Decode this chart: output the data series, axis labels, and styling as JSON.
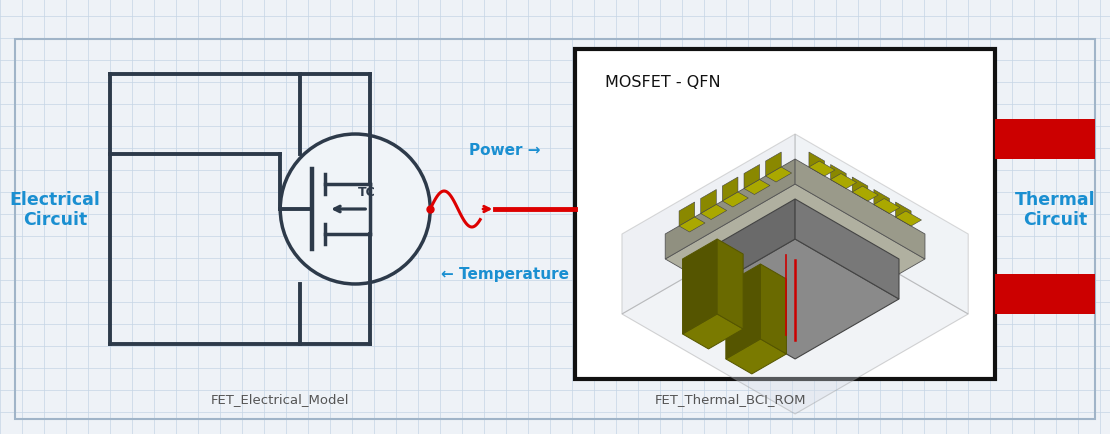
{
  "bg_color": "#eef2f7",
  "grid_color": "#c5d5e5",
  "outer_border_color": "#a0b4c8",
  "circuit_color": "#2d3a4a",
  "electrical_label": "Electrical\nCircuit",
  "thermal_label": "Thermal\nCircuit",
  "label_color": "#1a8fd1",
  "power_label": "Power →",
  "temp_label": "← Temperature",
  "arrow_label_color": "#1a8fd1",
  "mosfet_box_label": "MOSFET - QFN",
  "mosfet_box_color": "#111111",
  "mosfet_box_fill": "#ffffff",
  "red_line_color": "#dd0000",
  "fet_elec_label": "FET_Electrical_Model",
  "fet_therm_label": "FET_Thermal_BCI_ROM",
  "bottom_label_color": "#555555",
  "tc_label": "TC",
  "red_bar_color": "#cc0000",
  "figsize": [
    11.1,
    4.35
  ],
  "dpi": 100
}
